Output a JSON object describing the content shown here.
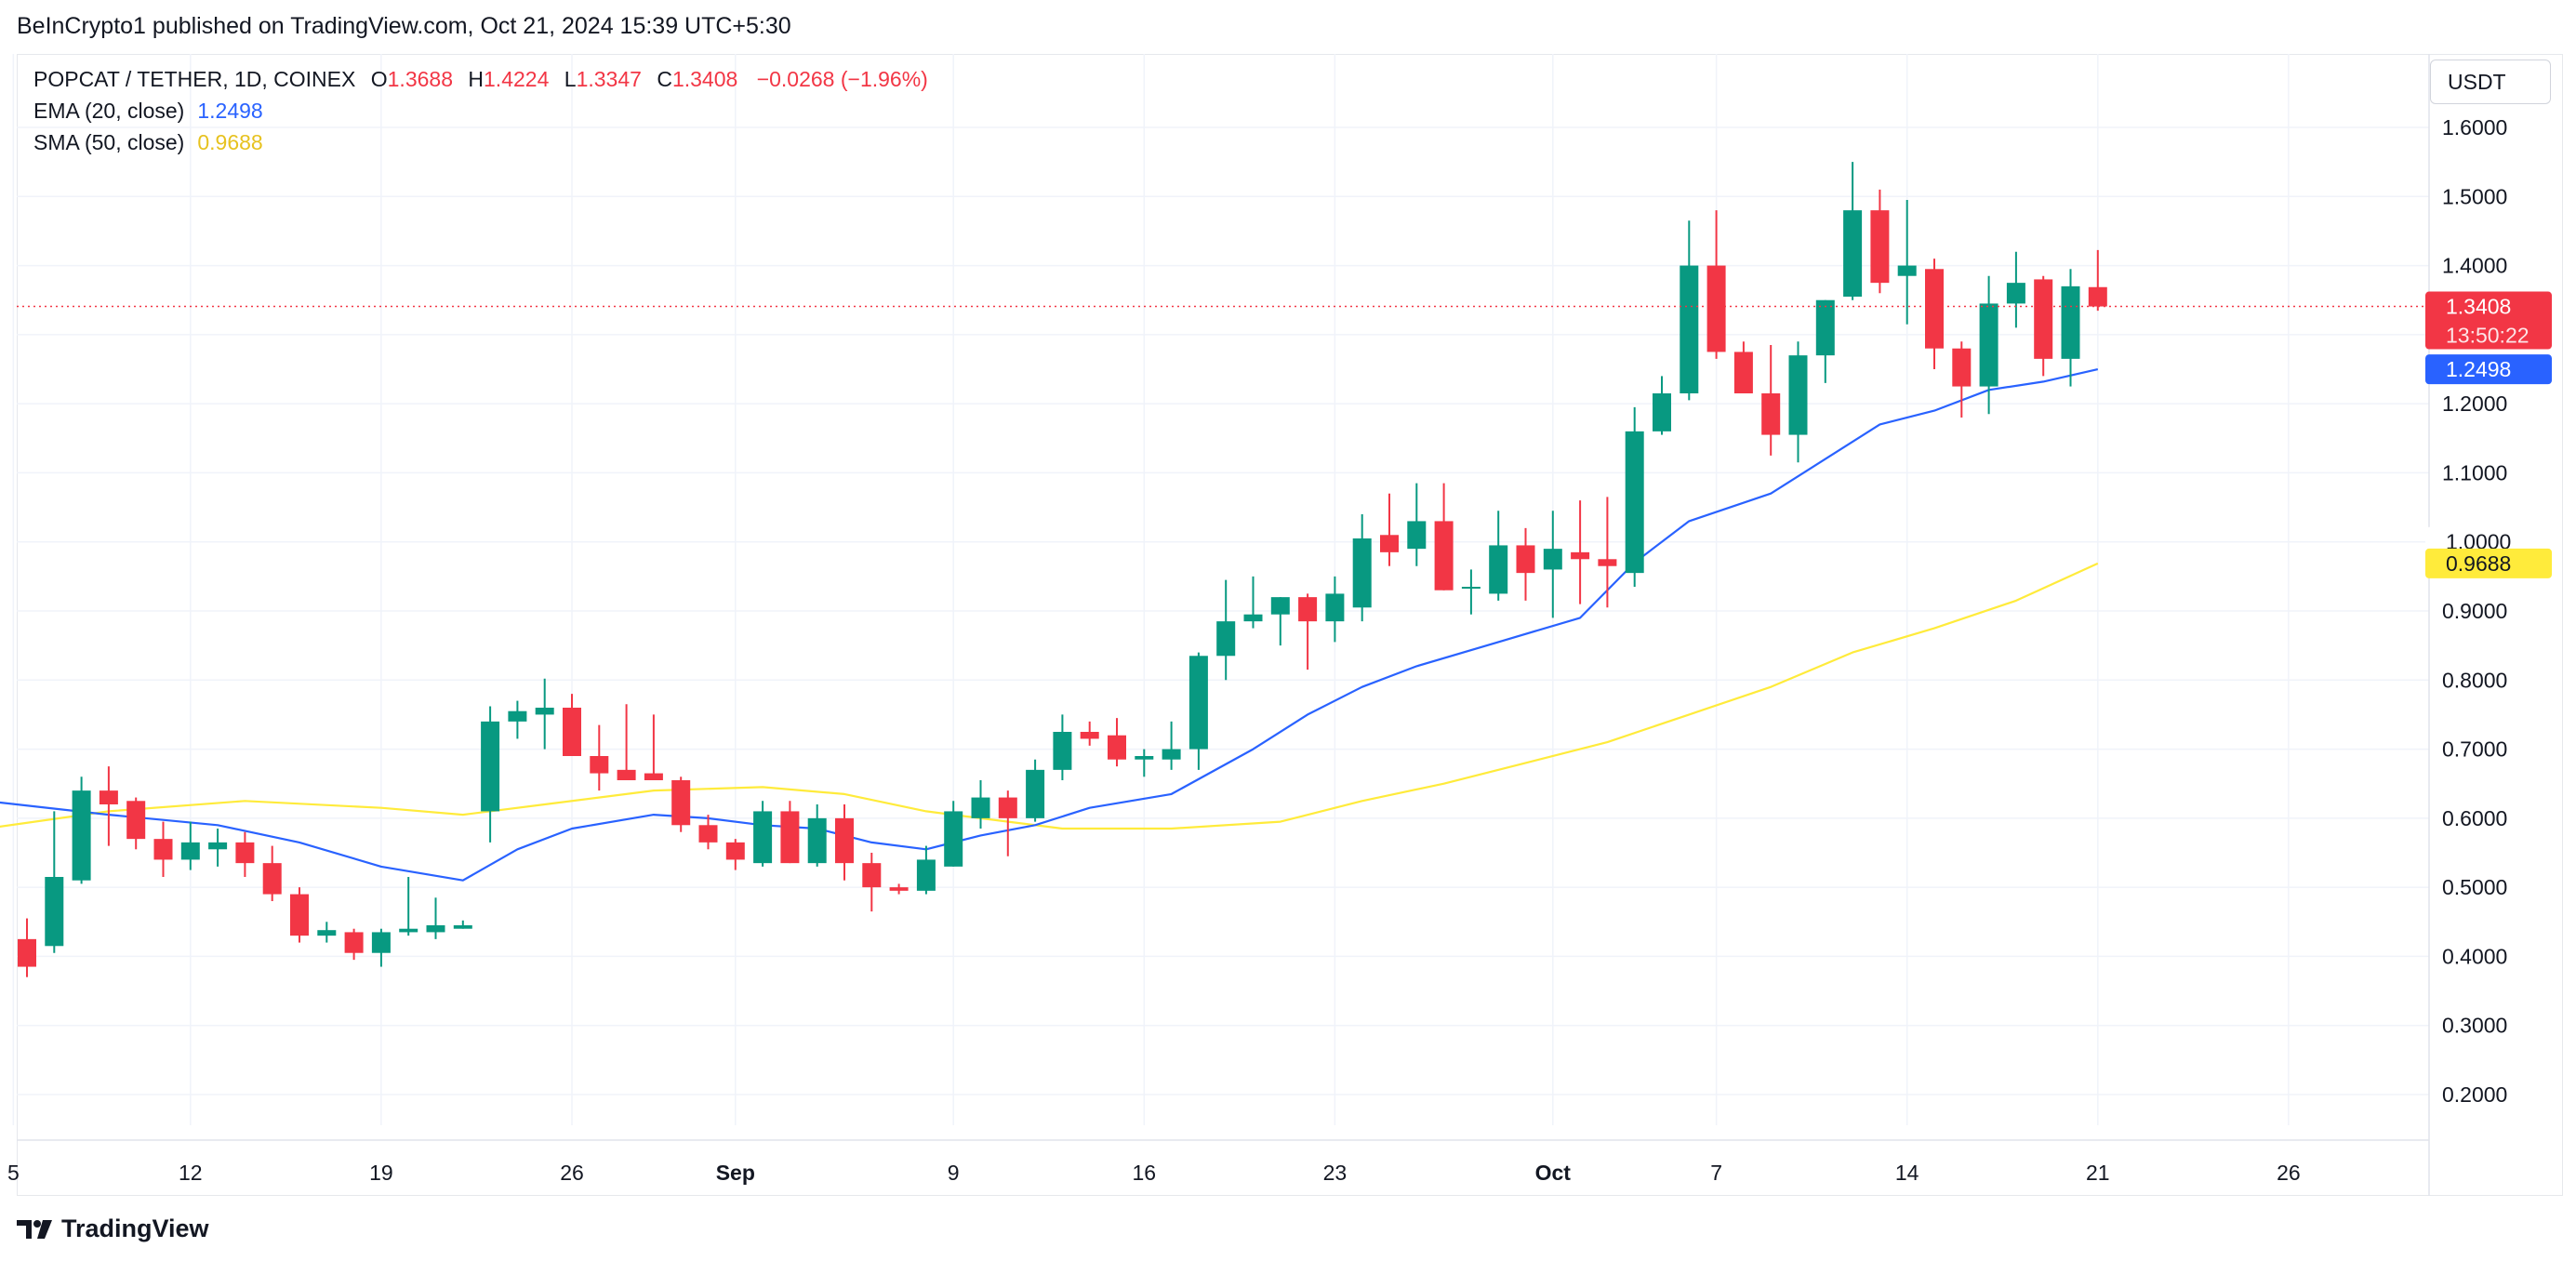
{
  "publisher_line": "BeInCrypto1 published on TradingView.com, Oct 21, 2024 15:39 UTC+5:30",
  "legend": {
    "symbol": "POPCAT / TETHER, 1D, COINEX",
    "o_label": "O",
    "o_value": "1.3688",
    "h_label": "H",
    "h_value": "1.4224",
    "l_label": "L",
    "l_value": "1.3347",
    "c_label": "C",
    "c_value": "1.3408",
    "change": "−0.0268 (−1.96%)",
    "ema_label": "EMA (20, close)",
    "ema_value": "1.2498",
    "sma_label": "SMA (50, close)",
    "sma_value": "0.9688"
  },
  "currency": "USDT",
  "footer": {
    "brand": "TradingView",
    "logo_icon": "tradingview-logo-icon"
  },
  "colors": {
    "up": "#089981",
    "down": "#f23645",
    "ema": "#2962ff",
    "sma": "#ffeb3b",
    "grid": "#f0f3fa"
  },
  "chart_data": {
    "type": "candlestick",
    "ylim": [
      0.15,
      1.65
    ],
    "y_ticks": [
      "0.2000",
      "0.3000",
      "0.4000",
      "0.5000",
      "0.6000",
      "0.7000",
      "0.8000",
      "0.9000",
      "1.0000",
      "1.1000",
      "1.2000",
      "1.3000",
      "1.4000",
      "1.5000",
      "1.6000"
    ],
    "x_ticks": [
      {
        "day": -0.5,
        "label": "5"
      },
      {
        "day": 6,
        "label": "12"
      },
      {
        "day": 13,
        "label": "19"
      },
      {
        "day": 20,
        "label": "26"
      },
      {
        "day": 26,
        "label": "Sep",
        "bold": true
      },
      {
        "day": 34,
        "label": "9"
      },
      {
        "day": 41,
        "label": "16"
      },
      {
        "day": 48,
        "label": "23"
      },
      {
        "day": 56,
        "label": "Oct",
        "bold": true
      },
      {
        "day": 62,
        "label": "7"
      },
      {
        "day": 69,
        "label": "14"
      },
      {
        "day": 76,
        "label": "21"
      },
      {
        "day": 83,
        "label": "26"
      }
    ],
    "x_axis_note": "day index 0 = Aug 6, 2024",
    "candles": [
      {
        "o": 0.425,
        "h": 0.455,
        "l": 0.37,
        "c": 0.385
      },
      {
        "o": 0.415,
        "h": 0.61,
        "l": 0.405,
        "c": 0.515
      },
      {
        "o": 0.51,
        "h": 0.66,
        "l": 0.505,
        "c": 0.64
      },
      {
        "o": 0.64,
        "h": 0.675,
        "l": 0.56,
        "c": 0.62
      },
      {
        "o": 0.625,
        "h": 0.63,
        "l": 0.555,
        "c": 0.57
      },
      {
        "o": 0.57,
        "h": 0.595,
        "l": 0.515,
        "c": 0.54
      },
      {
        "o": 0.54,
        "h": 0.595,
        "l": 0.525,
        "c": 0.565
      },
      {
        "o": 0.555,
        "h": 0.585,
        "l": 0.53,
        "c": 0.565
      },
      {
        "o": 0.565,
        "h": 0.58,
        "l": 0.515,
        "c": 0.535
      },
      {
        "o": 0.535,
        "h": 0.56,
        "l": 0.48,
        "c": 0.49
      },
      {
        "o": 0.49,
        "h": 0.5,
        "l": 0.42,
        "c": 0.43
      },
      {
        "o": 0.43,
        "h": 0.45,
        "l": 0.42,
        "c": 0.438
      },
      {
        "o": 0.435,
        "h": 0.44,
        "l": 0.395,
        "c": 0.405
      },
      {
        "o": 0.405,
        "h": 0.44,
        "l": 0.385,
        "c": 0.435
      },
      {
        "o": 0.435,
        "h": 0.515,
        "l": 0.43,
        "c": 0.44
      },
      {
        "o": 0.435,
        "h": 0.485,
        "l": 0.425,
        "c": 0.445
      },
      {
        "o": 0.44,
        "h": 0.452,
        "l": 0.44,
        "c": 0.445
      },
      {
        "o": 0.61,
        "h": 0.762,
        "l": 0.565,
        "c": 0.74
      },
      {
        "o": 0.74,
        "h": 0.77,
        "l": 0.715,
        "c": 0.755
      },
      {
        "o": 0.75,
        "h": 0.802,
        "l": 0.7,
        "c": 0.76
      },
      {
        "o": 0.76,
        "h": 0.78,
        "l": 0.69,
        "c": 0.69
      },
      {
        "o": 0.69,
        "h": 0.735,
        "l": 0.64,
        "c": 0.665
      },
      {
        "o": 0.67,
        "h": 0.765,
        "l": 0.655,
        "c": 0.655
      },
      {
        "o": 0.665,
        "h": 0.75,
        "l": 0.655,
        "c": 0.655
      },
      {
        "o": 0.655,
        "h": 0.66,
        "l": 0.58,
        "c": 0.59
      },
      {
        "o": 0.59,
        "h": 0.605,
        "l": 0.555,
        "c": 0.565
      },
      {
        "o": 0.565,
        "h": 0.57,
        "l": 0.525,
        "c": 0.54
      },
      {
        "o": 0.535,
        "h": 0.625,
        "l": 0.53,
        "c": 0.61
      },
      {
        "o": 0.61,
        "h": 0.625,
        "l": 0.535,
        "c": 0.535
      },
      {
        "o": 0.535,
        "h": 0.62,
        "l": 0.53,
        "c": 0.6
      },
      {
        "o": 0.6,
        "h": 0.62,
        "l": 0.51,
        "c": 0.535
      },
      {
        "o": 0.535,
        "h": 0.55,
        "l": 0.465,
        "c": 0.5
      },
      {
        "o": 0.5,
        "h": 0.505,
        "l": 0.49,
        "c": 0.495
      },
      {
        "o": 0.495,
        "h": 0.56,
        "l": 0.49,
        "c": 0.54
      },
      {
        "o": 0.53,
        "h": 0.625,
        "l": 0.53,
        "c": 0.61
      },
      {
        "o": 0.6,
        "h": 0.655,
        "l": 0.585,
        "c": 0.63
      },
      {
        "o": 0.63,
        "h": 0.64,
        "l": 0.545,
        "c": 0.6
      },
      {
        "o": 0.6,
        "h": 0.685,
        "l": 0.595,
        "c": 0.67
      },
      {
        "o": 0.67,
        "h": 0.75,
        "l": 0.655,
        "c": 0.725
      },
      {
        "o": 0.725,
        "h": 0.74,
        "l": 0.705,
        "c": 0.715
      },
      {
        "o": 0.72,
        "h": 0.745,
        "l": 0.675,
        "c": 0.685
      },
      {
        "o": 0.685,
        "h": 0.7,
        "l": 0.66,
        "c": 0.69
      },
      {
        "o": 0.685,
        "h": 0.74,
        "l": 0.67,
        "c": 0.7
      },
      {
        "o": 0.7,
        "h": 0.84,
        "l": 0.67,
        "c": 0.835
      },
      {
        "o": 0.835,
        "h": 0.945,
        "l": 0.8,
        "c": 0.885
      },
      {
        "o": 0.885,
        "h": 0.95,
        "l": 0.875,
        "c": 0.895
      },
      {
        "o": 0.895,
        "h": 0.92,
        "l": 0.85,
        "c": 0.92
      },
      {
        "o": 0.92,
        "h": 0.925,
        "l": 0.815,
        "c": 0.885
      },
      {
        "o": 0.885,
        "h": 0.95,
        "l": 0.855,
        "c": 0.925
      },
      {
        "o": 0.905,
        "h": 1.04,
        "l": 0.885,
        "c": 1.005
      },
      {
        "o": 1.01,
        "h": 1.07,
        "l": 0.965,
        "c": 0.985
      },
      {
        "o": 0.99,
        "h": 1.085,
        "l": 0.965,
        "c": 1.03
      },
      {
        "o": 1.03,
        "h": 1.085,
        "l": 0.93,
        "c": 0.93
      },
      {
        "o": 0.935,
        "h": 0.96,
        "l": 0.895,
        "c": 0.935
      },
      {
        "o": 0.925,
        "h": 1.045,
        "l": 0.915,
        "c": 0.995
      },
      {
        "o": 0.995,
        "h": 1.02,
        "l": 0.915,
        "c": 0.955
      },
      {
        "o": 0.96,
        "h": 1.045,
        "l": 0.89,
        "c": 0.99
      },
      {
        "o": 0.985,
        "h": 1.06,
        "l": 0.91,
        "c": 0.975
      },
      {
        "o": 0.975,
        "h": 1.065,
        "l": 0.905,
        "c": 0.965
      },
      {
        "o": 0.955,
        "h": 1.195,
        "l": 0.935,
        "c": 1.16
      },
      {
        "o": 1.16,
        "h": 1.24,
        "l": 1.155,
        "c": 1.215
      },
      {
        "o": 1.215,
        "h": 1.465,
        "l": 1.205,
        "c": 1.4
      },
      {
        "o": 1.4,
        "h": 1.48,
        "l": 1.265,
        "c": 1.275
      },
      {
        "o": 1.275,
        "h": 1.29,
        "l": 1.215,
        "c": 1.215
      },
      {
        "o": 1.215,
        "h": 1.285,
        "l": 1.125,
        "c": 1.155
      },
      {
        "o": 1.155,
        "h": 1.29,
        "l": 1.115,
        "c": 1.27
      },
      {
        "o": 1.27,
        "h": 1.35,
        "l": 1.23,
        "c": 1.35
      },
      {
        "o": 1.355,
        "h": 1.55,
        "l": 1.35,
        "c": 1.48
      },
      {
        "o": 1.48,
        "h": 1.51,
        "l": 1.36,
        "c": 1.375
      },
      {
        "o": 1.385,
        "h": 1.495,
        "l": 1.315,
        "c": 1.4
      },
      {
        "o": 1.395,
        "h": 1.41,
        "l": 1.25,
        "c": 1.28
      },
      {
        "o": 1.28,
        "h": 1.29,
        "l": 1.18,
        "c": 1.225
      },
      {
        "o": 1.225,
        "h": 1.385,
        "l": 1.185,
        "c": 1.345
      },
      {
        "o": 1.345,
        "h": 1.42,
        "l": 1.31,
        "c": 1.375
      },
      {
        "o": 1.38,
        "h": 1.385,
        "l": 1.24,
        "c": 1.265
      },
      {
        "o": 1.265,
        "h": 1.395,
        "l": 1.225,
        "c": 1.37
      },
      {
        "o": 1.3688,
        "h": 1.4224,
        "l": 1.3347,
        "c": 1.3408
      }
    ],
    "ema_20": [
      [
        -1.5,
        0.625
      ],
      [
        3,
        0.605
      ],
      [
        7,
        0.59
      ],
      [
        10,
        0.565
      ],
      [
        13,
        0.53
      ],
      [
        16,
        0.51
      ],
      [
        18,
        0.555
      ],
      [
        20,
        0.585
      ],
      [
        23,
        0.605
      ],
      [
        25,
        0.6
      ],
      [
        27,
        0.59
      ],
      [
        29,
        0.585
      ],
      [
        31,
        0.565
      ],
      [
        33,
        0.555
      ],
      [
        35,
        0.575
      ],
      [
        37,
        0.59
      ],
      [
        39,
        0.615
      ],
      [
        42,
        0.635
      ],
      [
        45,
        0.7
      ],
      [
        47,
        0.75
      ],
      [
        49,
        0.79
      ],
      [
        51,
        0.82
      ],
      [
        54,
        0.855
      ],
      [
        57,
        0.89
      ],
      [
        59,
        0.97
      ],
      [
        61,
        1.03
      ],
      [
        64,
        1.07
      ],
      [
        66,
        1.12
      ],
      [
        68,
        1.17
      ],
      [
        70,
        1.19
      ],
      [
        72,
        1.22
      ],
      [
        74,
        1.232
      ],
      [
        76,
        1.2498
      ]
    ],
    "sma_50": [
      [
        -1.5,
        0.585
      ],
      [
        3,
        0.61
      ],
      [
        8,
        0.625
      ],
      [
        13,
        0.615
      ],
      [
        16,
        0.605
      ],
      [
        19,
        0.62
      ],
      [
        23,
        0.64
      ],
      [
        27,
        0.645
      ],
      [
        30,
        0.635
      ],
      [
        33,
        0.61
      ],
      [
        35,
        0.6
      ],
      [
        38,
        0.585
      ],
      [
        42,
        0.585
      ],
      [
        46,
        0.595
      ],
      [
        49,
        0.625
      ],
      [
        52,
        0.65
      ],
      [
        55,
        0.68
      ],
      [
        58,
        0.71
      ],
      [
        61,
        0.75
      ],
      [
        64,
        0.79
      ],
      [
        67,
        0.84
      ],
      [
        70,
        0.875
      ],
      [
        73,
        0.915
      ],
      [
        76,
        0.9688
      ]
    ],
    "last_price_label": "1.3408",
    "countdown_label": "13:50:22",
    "ema_label": "1.2498",
    "sma_label": "0.9688",
    "partial_label": "1.0000"
  }
}
